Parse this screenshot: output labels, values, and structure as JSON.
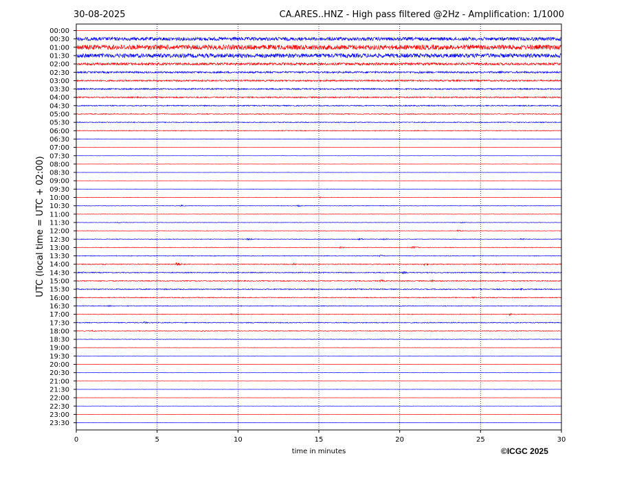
{
  "header": {
    "date": "30-08-2025",
    "title": "CA.ARES..HNZ - High pass filtered @2Hz - Amplification: 1/1000"
  },
  "copyright": "©ICGC 2025",
  "colors": {
    "odd_rows": "#ff0000",
    "even_rows": "#0000ff",
    "grid": "#000080"
  },
  "chart_data": {
    "type": "line",
    "title": "CA.ARES..HNZ - High pass filtered @2Hz - Amplification: 1/1000",
    "xlabel": "time in minutes",
    "ylabel": "UTC (local time = UTC + 02:00)",
    "xlim": [
      0,
      30
    ],
    "x_ticks": [
      "0",
      "5",
      "10",
      "15",
      "20",
      "25",
      "30"
    ],
    "row_labels": [
      "00:00",
      "00:30",
      "01:00",
      "01:30",
      "02:00",
      "02:30",
      "03:00",
      "03:30",
      "04:00",
      "04:30",
      "05:00",
      "05:30",
      "06:00",
      "06:30",
      "07:00",
      "07:30",
      "08:00",
      "08:30",
      "09:00",
      "09:30",
      "10:00",
      "10:30",
      "11:00",
      "11:30",
      "12:00",
      "12:30",
      "13:00",
      "13:30",
      "14:00",
      "14:30",
      "15:00",
      "15:30",
      "16:00",
      "16:30",
      "17:00",
      "17:30",
      "18:00",
      "18:30",
      "19:00",
      "19:30",
      "20:00",
      "20:30",
      "21:00",
      "21:30",
      "22:00",
      "22:30",
      "23:00",
      "23:30"
    ],
    "row_colors": [
      "red",
      "blue",
      "red",
      "blue",
      "red",
      "blue",
      "red",
      "blue",
      "red",
      "blue",
      "red",
      "blue",
      "red",
      "blue",
      "red",
      "blue",
      "red",
      "blue",
      "red",
      "blue",
      "red",
      "blue",
      "red",
      "blue",
      "red",
      "blue",
      "red",
      "blue",
      "red",
      "blue",
      "red",
      "blue",
      "red",
      "blue",
      "red",
      "blue",
      "red",
      "blue",
      "red",
      "blue",
      "red",
      "blue",
      "red",
      "blue",
      "red",
      "blue",
      "red",
      "blue"
    ],
    "noise_level": [
      0.6,
      5,
      7,
      6,
      3.5,
      2.5,
      2.2,
      2,
      1.8,
      1.5,
      1.1,
      1.2,
      1.0,
      0.6,
      0.3,
      0.3,
      0.3,
      0.3,
      0.3,
      0.4,
      0.6,
      0.7,
      0.5,
      0.6,
      0.6,
      0.8,
      0.8,
      0.9,
      1.2,
      1.3,
      1.3,
      1.4,
      1.1,
      1.0,
      0.8,
      1.2,
      0.9,
      0.6,
      0.4,
      0.4,
      0.3,
      0.4,
      0.3,
      0.3,
      0.3,
      0.3,
      0.3,
      0.3
    ],
    "data_start_minute": [
      24,
      0,
      0,
      0,
      0,
      0,
      0,
      0,
      0,
      0,
      0,
      0,
      0,
      0,
      0,
      0,
      0,
      0,
      0,
      0,
      0,
      0,
      0,
      0,
      0,
      0,
      0,
      0,
      0,
      0,
      0,
      0,
      0,
      0,
      0,
      0,
      0,
      0,
      0,
      0,
      0,
      0,
      0,
      0,
      0,
      0,
      0,
      0
    ],
    "events": [
      {
        "row": 1,
        "minute": 11.0,
        "amp": 6
      },
      {
        "row": 1,
        "minute": 12.3,
        "amp": 5
      },
      {
        "row": 1,
        "minute": 23.5,
        "amp": 5
      },
      {
        "row": 1,
        "minute": 25.0,
        "amp": 4
      },
      {
        "row": 2,
        "minute": 8.6,
        "amp": 6
      },
      {
        "row": 2,
        "minute": 18.0,
        "amp": 7
      },
      {
        "row": 2,
        "minute": 20.5,
        "amp": 5
      },
      {
        "row": 2,
        "minute": 25.5,
        "amp": 4
      },
      {
        "row": 3,
        "minute": 0.3,
        "amp": 6
      },
      {
        "row": 3,
        "minute": 16.0,
        "amp": 4
      },
      {
        "row": 4,
        "minute": 18.5,
        "amp": 4
      },
      {
        "row": 4,
        "minute": 22.0,
        "amp": 3
      },
      {
        "row": 5,
        "minute": 21.2,
        "amp": 5
      },
      {
        "row": 5,
        "minute": 26.2,
        "amp": 5
      },
      {
        "row": 6,
        "minute": 4.1,
        "amp": 3
      },
      {
        "row": 6,
        "minute": 15.2,
        "amp": 3
      },
      {
        "row": 6,
        "minute": 23.8,
        "amp": 3
      },
      {
        "row": 8,
        "minute": 24.8,
        "amp": 2
      },
      {
        "row": 9,
        "minute": 16.4,
        "amp": 2
      },
      {
        "row": 20,
        "minute": 15.0,
        "amp": 2.5
      },
      {
        "row": 21,
        "minute": 6.5,
        "amp": 2.5
      },
      {
        "row": 21,
        "minute": 13.7,
        "amp": 2.5
      },
      {
        "row": 23,
        "minute": 2.6,
        "amp": 2
      },
      {
        "row": 23,
        "minute": 23.8,
        "amp": 2
      },
      {
        "row": 24,
        "minute": 23.6,
        "amp": 2.5
      },
      {
        "row": 25,
        "minute": 10.6,
        "amp": 3
      },
      {
        "row": 25,
        "minute": 17.5,
        "amp": 3
      },
      {
        "row": 25,
        "minute": 19.0,
        "amp": 2.5
      },
      {
        "row": 25,
        "minute": 27.5,
        "amp": 3
      },
      {
        "row": 26,
        "minute": 16.3,
        "amp": 3
      },
      {
        "row": 26,
        "minute": 20.8,
        "amp": 4
      },
      {
        "row": 27,
        "minute": 18.8,
        "amp": 3
      },
      {
        "row": 28,
        "minute": 6.2,
        "amp": 7
      },
      {
        "row": 28,
        "minute": 1.7,
        "amp": 3
      },
      {
        "row": 28,
        "minute": 13.4,
        "amp": 3
      },
      {
        "row": 28,
        "minute": 21.5,
        "amp": 4
      },
      {
        "row": 29,
        "minute": 0.4,
        "amp": 3
      },
      {
        "row": 29,
        "minute": 20.2,
        "amp": 4
      },
      {
        "row": 30,
        "minute": 18.8,
        "amp": 4
      },
      {
        "row": 30,
        "minute": 22.0,
        "amp": 4
      },
      {
        "row": 31,
        "minute": 25.0,
        "amp": 3
      },
      {
        "row": 31,
        "minute": 27.5,
        "amp": 3
      },
      {
        "row": 32,
        "minute": 24.5,
        "amp": 3
      },
      {
        "row": 33,
        "minute": 2.0,
        "amp": 2.5
      },
      {
        "row": 33,
        "minute": 20.0,
        "amp": 2.5
      },
      {
        "row": 34,
        "minute": 26.8,
        "amp": 4
      },
      {
        "row": 34,
        "minute": 9.6,
        "amp": 2.5
      },
      {
        "row": 35,
        "minute": 4.2,
        "amp": 3
      },
      {
        "row": 35,
        "minute": 11.0,
        "amp": 3
      },
      {
        "row": 36,
        "minute": 7.8,
        "amp": 2.5
      },
      {
        "row": 36,
        "minute": 1.0,
        "amp": 2.5
      }
    ]
  }
}
